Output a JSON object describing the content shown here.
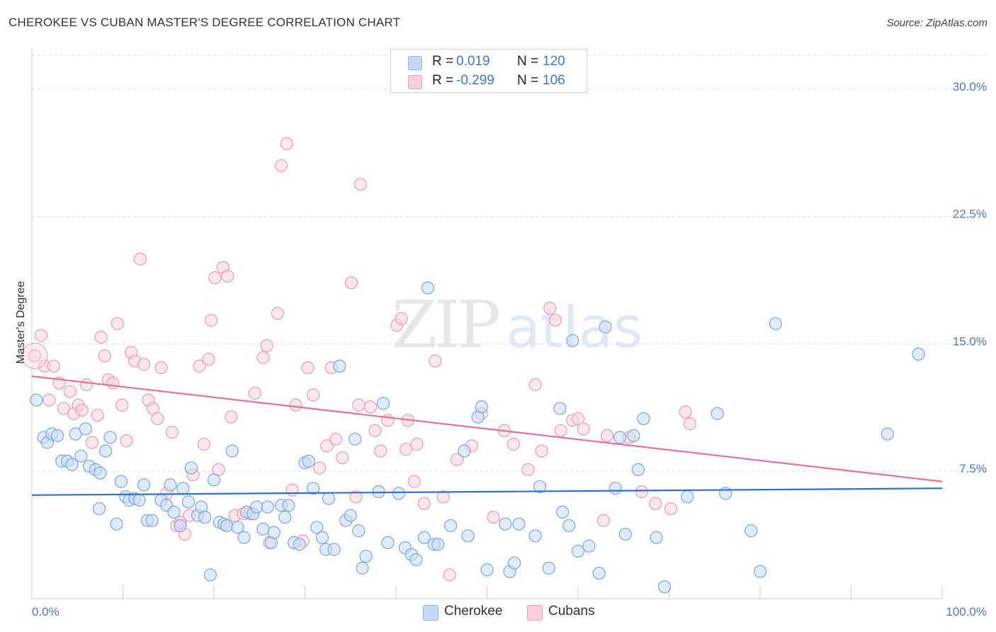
{
  "title": "CHEROKEE VS CUBAN MASTER'S DEGREE CORRELATION CHART",
  "source": "Source: ZipAtlas.com",
  "watermark": {
    "zip": "ZIP",
    "atlas": "atlas"
  },
  "legend": {
    "rows": [
      {
        "r_label": "R =",
        "r_value": "0.019",
        "n_label": "N =",
        "n_value": "120",
        "color": "#8fb6ec",
        "fill": "#c4d9f7"
      },
      {
        "r_label": "R =",
        "r_value": "-0.299",
        "n_label": "N =",
        "n_value": "106",
        "color": "#f29fb9",
        "fill": "#f9cfdd"
      }
    ]
  },
  "bottom_legend": {
    "cherokee": "Cherokee",
    "cubans": "Cubans"
  },
  "colors": {
    "cherokee_fill": "#c9dcf6",
    "cherokee_stroke": "#7aa7e0",
    "cherokee_line": "#2f6fcf",
    "cubans_fill": "#f9d3df",
    "cubans_stroke": "#ee9ab5",
    "cubans_line": "#e8709b",
    "axis_text": "#4a7cc6",
    "grid": "#dddddd"
  },
  "chart_data": {
    "type": "scatter",
    "title": "CHEROKEE VS CUBAN MASTER'S DEGREE CORRELATION CHART",
    "ylabel": "Master's Degree",
    "xlabel": "",
    "xlim": [
      0,
      100
    ],
    "ylim": [
      0,
      32
    ],
    "x_tick_labels": [
      "0.0%",
      "100.0%"
    ],
    "y_ticks": [
      7.5,
      15.0,
      22.5,
      30.0
    ],
    "y_tick_labels": [
      "7.5%",
      "15.0%",
      "22.5%",
      "30.0%"
    ],
    "grid": true,
    "legend_position": "top-center",
    "series": [
      {
        "name": "Cherokee",
        "trend": {
          "x0": 0,
          "y0": 6.1,
          "x1": 100,
          "y1": 6.5
        },
        "points": [
          [
            0.5,
            11.7
          ],
          [
            1.3,
            9.5
          ],
          [
            1.7,
            9.2
          ],
          [
            2.2,
            9.7
          ],
          [
            2.8,
            9.6
          ],
          [
            3.3,
            8.1
          ],
          [
            3.9,
            8.1
          ],
          [
            4.4,
            7.9
          ],
          [
            4.8,
            9.7
          ],
          [
            5.4,
            8.4
          ],
          [
            5.9,
            10.0
          ],
          [
            6.3,
            7.8
          ],
          [
            7.0,
            7.6
          ],
          [
            7.5,
            7.4
          ],
          [
            8.1,
            8.7
          ],
          [
            8.6,
            9.5
          ],
          [
            9.3,
            4.4
          ],
          [
            7.4,
            5.3
          ],
          [
            9.8,
            6.9
          ],
          [
            10.3,
            6.0
          ],
          [
            10.7,
            5.8
          ],
          [
            11.3,
            5.9
          ],
          [
            11.8,
            5.8
          ],
          [
            12.3,
            6.7
          ],
          [
            12.7,
            4.6
          ],
          [
            13.2,
            4.6
          ],
          [
            14.2,
            5.8
          ],
          [
            14.8,
            5.5
          ],
          [
            15.2,
            6.7
          ],
          [
            15.6,
            5.1
          ],
          [
            16.3,
            4.3
          ],
          [
            16.6,
            6.5
          ],
          [
            17.2,
            5.7
          ],
          [
            17.5,
            7.7
          ],
          [
            18.2,
            4.9
          ],
          [
            18.6,
            5.4
          ],
          [
            19.0,
            4.8
          ],
          [
            19.6,
            1.4
          ],
          [
            20.0,
            7.0
          ],
          [
            20.6,
            4.5
          ],
          [
            21.1,
            4.4
          ],
          [
            21.4,
            4.3
          ],
          [
            22.0,
            8.7
          ],
          [
            22.6,
            4.2
          ],
          [
            23.3,
            3.6
          ],
          [
            23.6,
            5.1
          ],
          [
            24.3,
            5.0
          ],
          [
            24.7,
            5.4
          ],
          [
            25.4,
            4.1
          ],
          [
            25.9,
            5.4
          ],
          [
            26.3,
            3.3
          ],
          [
            26.6,
            3.9
          ],
          [
            27.4,
            5.5
          ],
          [
            27.8,
            4.8
          ],
          [
            28.2,
            5.5
          ],
          [
            28.8,
            3.3
          ],
          [
            29.4,
            3.2
          ],
          [
            30.0,
            8.0
          ],
          [
            30.4,
            8.1
          ],
          [
            30.9,
            6.5
          ],
          [
            31.3,
            4.2
          ],
          [
            31.9,
            3.6
          ],
          [
            32.3,
            2.9
          ],
          [
            32.6,
            5.9
          ],
          [
            33.2,
            2.9
          ],
          [
            33.8,
            13.7
          ],
          [
            34.5,
            4.6
          ],
          [
            35.0,
            4.9
          ],
          [
            35.5,
            9.4
          ],
          [
            35.9,
            4.0
          ],
          [
            36.3,
            1.8
          ],
          [
            36.7,
            2.5
          ],
          [
            38.1,
            6.3
          ],
          [
            38.6,
            11.5
          ],
          [
            39.1,
            3.3
          ],
          [
            40.3,
            6.2
          ],
          [
            41.0,
            3.0
          ],
          [
            41.7,
            2.6
          ],
          [
            42.2,
            2.3
          ],
          [
            43.1,
            3.6
          ],
          [
            43.5,
            18.3
          ],
          [
            44.2,
            3.2
          ],
          [
            44.6,
            3.2
          ],
          [
            46.0,
            4.3
          ],
          [
            47.5,
            8.7
          ],
          [
            47.9,
            3.7
          ],
          [
            49.0,
            10.7
          ],
          [
            49.4,
            11.3
          ],
          [
            50.0,
            1.7
          ],
          [
            52.0,
            4.4
          ],
          [
            52.5,
            1.6
          ],
          [
            53.0,
            2.1
          ],
          [
            53.5,
            4.4
          ],
          [
            55.3,
            3.7
          ],
          [
            55.8,
            6.6
          ],
          [
            56.8,
            1.8
          ],
          [
            58.0,
            11.2
          ],
          [
            58.3,
            5.1
          ],
          [
            59.0,
            4.3
          ],
          [
            59.4,
            15.2
          ],
          [
            60.0,
            2.8
          ],
          [
            61.2,
            3.1
          ],
          [
            62.3,
            1.5
          ],
          [
            63.0,
            16.0
          ],
          [
            64.1,
            6.5
          ],
          [
            64.6,
            9.5
          ],
          [
            65.2,
            3.8
          ],
          [
            66.1,
            9.6
          ],
          [
            66.6,
            7.6
          ],
          [
            67.2,
            10.6
          ],
          [
            68.6,
            3.6
          ],
          [
            69.5,
            0.7
          ],
          [
            72.0,
            6.0
          ],
          [
            75.3,
            10.9
          ],
          [
            76.2,
            6.2
          ],
          [
            79.0,
            4.0
          ],
          [
            80.0,
            1.6
          ],
          [
            81.7,
            16.2
          ],
          [
            94.0,
            9.7
          ],
          [
            97.4,
            14.4
          ]
        ]
      },
      {
        "name": "Cubans",
        "trend": {
          "x0": 0,
          "y0": 13.1,
          "x1": 100,
          "y1": 6.9
        },
        "points": [
          [
            0.3,
            14.3
          ],
          [
            1.0,
            15.5
          ],
          [
            1.4,
            13.7
          ],
          [
            1.9,
            11.7
          ],
          [
            2.4,
            13.7
          ],
          [
            3.0,
            12.7
          ],
          [
            3.5,
            11.2
          ],
          [
            4.2,
            12.2
          ],
          [
            4.6,
            10.9
          ],
          [
            5.1,
            11.4
          ],
          [
            5.5,
            11.1
          ],
          [
            6.0,
            12.6
          ],
          [
            6.6,
            9.2
          ],
          [
            7.2,
            10.8
          ],
          [
            7.6,
            15.4
          ],
          [
            8.0,
            14.3
          ],
          [
            8.4,
            12.9
          ],
          [
            8.9,
            12.7
          ],
          [
            9.4,
            16.2
          ],
          [
            9.9,
            11.4
          ],
          [
            10.4,
            9.3
          ],
          [
            10.9,
            14.5
          ],
          [
            11.3,
            14.0
          ],
          [
            11.9,
            20.0
          ],
          [
            12.3,
            13.8
          ],
          [
            12.8,
            11.7
          ],
          [
            13.3,
            11.2
          ],
          [
            13.8,
            10.6
          ],
          [
            14.2,
            13.6
          ],
          [
            14.8,
            6.2
          ],
          [
            15.4,
            9.8
          ],
          [
            15.9,
            4.3
          ],
          [
            16.3,
            4.5
          ],
          [
            16.8,
            3.8
          ],
          [
            17.3,
            4.9
          ],
          [
            17.7,
            7.3
          ],
          [
            18.4,
            13.7
          ],
          [
            18.9,
            9.1
          ],
          [
            19.4,
            14.1
          ],
          [
            19.7,
            16.4
          ],
          [
            20.1,
            18.9
          ],
          [
            20.5,
            7.6
          ],
          [
            21.0,
            19.5
          ],
          [
            21.5,
            19.0
          ],
          [
            21.9,
            10.7
          ],
          [
            22.3,
            4.9
          ],
          [
            23.2,
            5.0
          ],
          [
            23.9,
            5.0
          ],
          [
            24.5,
            12.1
          ],
          [
            25.4,
            14.2
          ],
          [
            25.8,
            14.9
          ],
          [
            26.1,
            3.3
          ],
          [
            27.0,
            16.8
          ],
          [
            27.4,
            25.5
          ],
          [
            28.0,
            26.8
          ],
          [
            28.6,
            6.4
          ],
          [
            29.0,
            11.4
          ],
          [
            29.8,
            3.4
          ],
          [
            30.3,
            13.6
          ],
          [
            30.9,
            12.0
          ],
          [
            31.6,
            7.7
          ],
          [
            32.4,
            9.0
          ],
          [
            32.9,
            13.6
          ],
          [
            33.4,
            9.4
          ],
          [
            34.1,
            8.3
          ],
          [
            35.1,
            18.6
          ],
          [
            35.6,
            6.0
          ],
          [
            35.9,
            11.4
          ],
          [
            36.1,
            24.4
          ],
          [
            37.2,
            11.3
          ],
          [
            37.7,
            9.9
          ],
          [
            38.3,
            8.7
          ],
          [
            39.1,
            10.5
          ],
          [
            40.1,
            16.1
          ],
          [
            40.6,
            16.5
          ],
          [
            41.1,
            8.8
          ],
          [
            41.3,
            10.5
          ],
          [
            42.0,
            6.9
          ],
          [
            42.3,
            9.1
          ],
          [
            43.1,
            5.6
          ],
          [
            44.3,
            14.0
          ],
          [
            45.2,
            6.0
          ],
          [
            45.9,
            1.4
          ],
          [
            46.7,
            8.2
          ],
          [
            48.3,
            9.0
          ],
          [
            49.4,
            10.9
          ],
          [
            50.7,
            4.8
          ],
          [
            51.9,
            9.9
          ],
          [
            52.9,
            9.1
          ],
          [
            54.5,
            7.6
          ],
          [
            55.3,
            12.6
          ],
          [
            56.0,
            8.7
          ],
          [
            56.9,
            17.1
          ],
          [
            57.5,
            16.4
          ],
          [
            58.1,
            9.9
          ],
          [
            59.4,
            10.5
          ],
          [
            60.0,
            10.6
          ],
          [
            60.6,
            10.0
          ],
          [
            62.8,
            4.6
          ],
          [
            63.2,
            9.6
          ],
          [
            65.6,
            9.5
          ],
          [
            67.0,
            6.3
          ],
          [
            68.5,
            5.6
          ],
          [
            70.2,
            5.3
          ],
          [
            71.8,
            11.0
          ],
          [
            72.3,
            10.3
          ]
        ]
      }
    ]
  }
}
